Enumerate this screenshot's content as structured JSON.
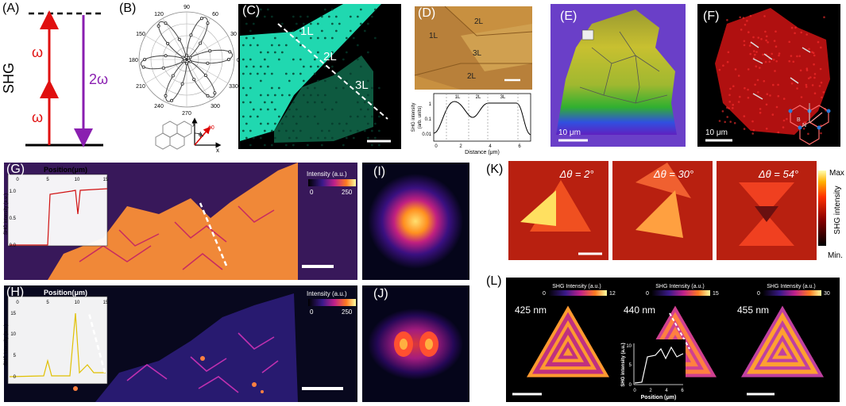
{
  "labels": {
    "A": "(A)",
    "B": "(B)",
    "C": "(C)",
    "D": "(D)",
    "E": "(E)",
    "F": "(F)",
    "G": "(G)",
    "H": "(H)",
    "I": "(I)",
    "J": "(J)",
    "K": "(K)",
    "L": "(L)"
  },
  "panelA": {
    "ylabel": "SHG",
    "omega": "ω",
    "two_omega": "2ω"
  },
  "panelB": {
    "angles": [
      "90",
      "120",
      "60",
      "150",
      "30",
      "180",
      "0",
      "210",
      "330",
      "240",
      "300",
      "270"
    ],
    "axis_x": "x",
    "axis_y": "y",
    "phi": "ϕ",
    "phi0": "ϕ0"
  },
  "panelC": {
    "l1": "1L",
    "l2": "2L",
    "l3": "3L"
  },
  "panelD": {
    "l2top": "2L",
    "l1": "1L",
    "l3": "3L",
    "l2bot": "2L",
    "seg1": "1L",
    "seg2": "2L",
    "seg3": "3L",
    "ylabel1": "SHG intensity",
    "ylabel2": "(arb. units)",
    "yticks": [
      "1",
      "0.1",
      "0.01"
    ],
    "xticks": [
      "0",
      "2",
      "4",
      "6"
    ],
    "xlabel": "Distance (μm)"
  },
  "panelE": {
    "scale": "10 μm"
  },
  "panelF": {
    "scale": "10 μm",
    "B": "B",
    "N": "N"
  },
  "panelG": {
    "pos_title": "Position(μm)",
    "xticks": [
      "0",
      "5",
      "10",
      "15"
    ],
    "ylabel": "SHG intensity (a.u.)",
    "yticks": [
      "1.0",
      "0.5",
      "0.0"
    ],
    "cbar_title": "Intensity (a.u.)",
    "cbar_min": "0",
    "cbar_max": "250"
  },
  "panelH": {
    "pos_title": "Position(μm)",
    "xticks": [
      "0",
      "5",
      "10",
      "15"
    ],
    "ylabel": "SHG intensity (a.u.)",
    "yticks": [
      "15",
      "10",
      "5",
      "0"
    ],
    "cbar_title": "Intensity (a.u.)",
    "cbar_min": "0",
    "cbar_max": "250"
  },
  "panelK": {
    "t1": "Δθ = 2°",
    "t2": "Δθ = 30°",
    "t3": "Δθ = 54°",
    "cb_max": "Max",
    "cb_min": "Min.",
    "cb_label": "SHG intensity"
  },
  "panelL": {
    "cb1_title": "SHG Intensity (a.u.)",
    "cb1_min": "0",
    "cb1_max": "12",
    "cb2_title": "SHG Intensity (a.u.)",
    "cb2_min": "0",
    "cb2_max": "15",
    "cb3_title": "SHG Intensity (a.u.)",
    "cb3_min": "0",
    "cb3_max": "30",
    "w1": "425 nm",
    "w2": "440 nm",
    "w3": "455 nm",
    "inset_ylabel": "SHG intensity (a.u.)",
    "inset_xlabel": "Position (μm)",
    "inset_yticks": [
      "10",
      "5",
      "0"
    ],
    "inset_xticks": [
      "0",
      "2",
      "4",
      "6"
    ]
  }
}
